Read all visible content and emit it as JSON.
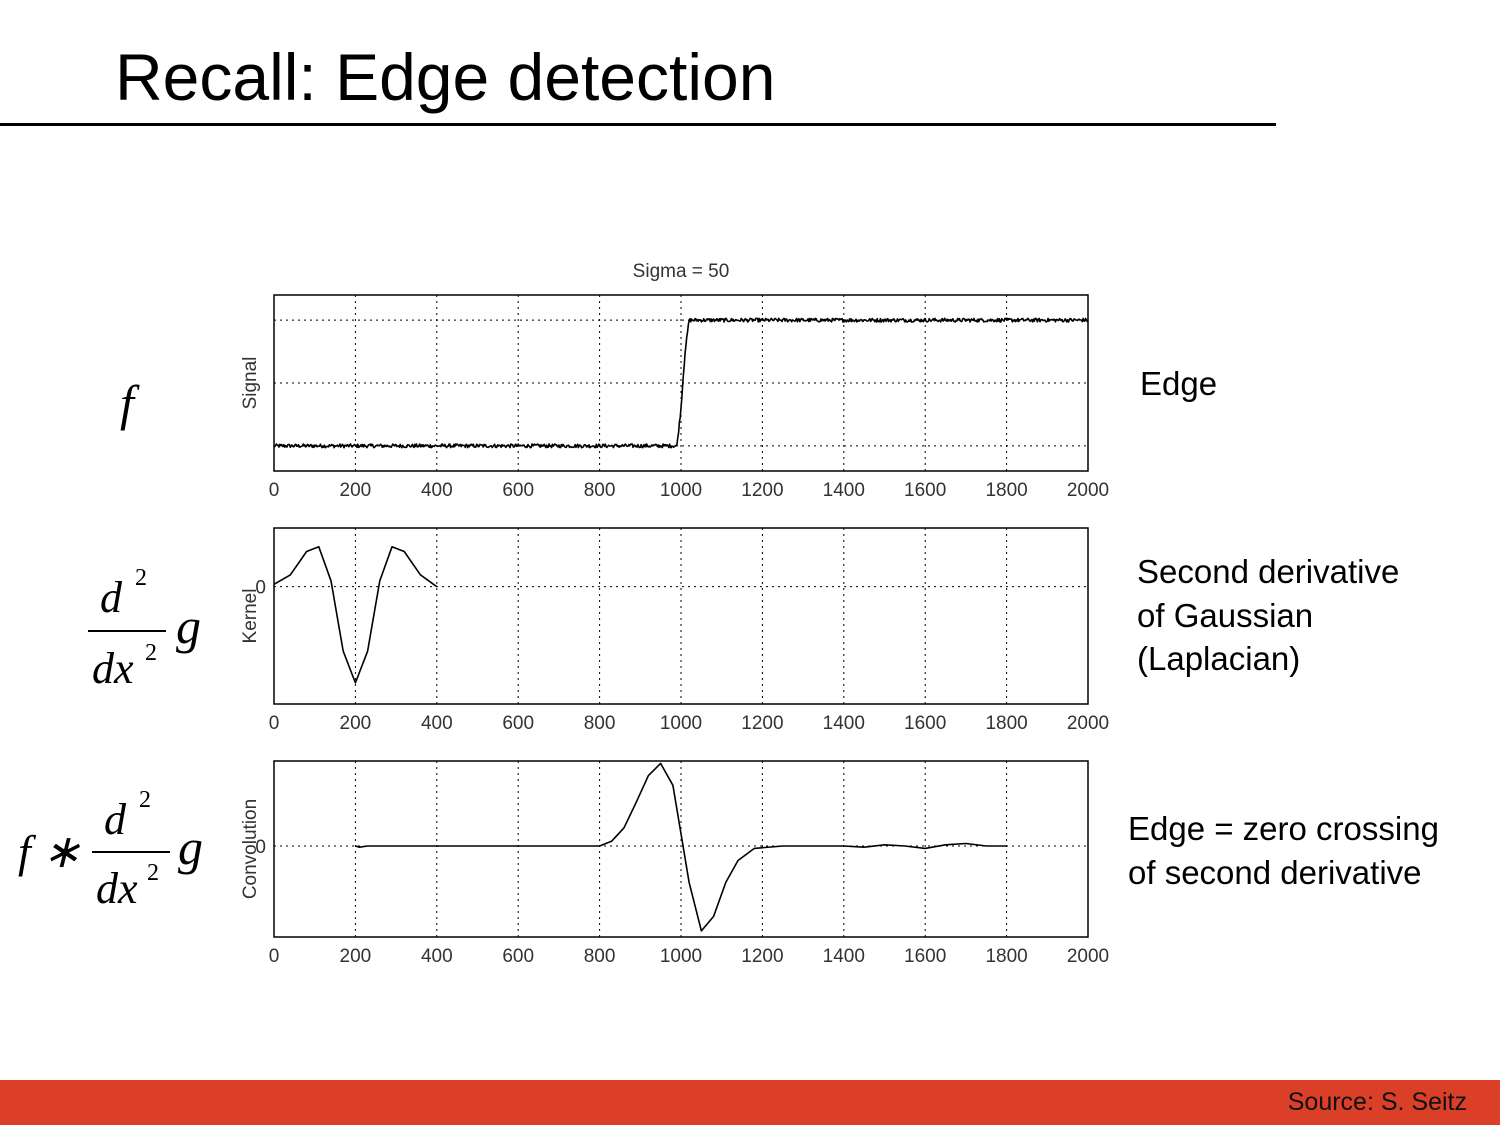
{
  "slide": {
    "title": "Recall: Edge detection",
    "source": "Source: S. Seitz"
  },
  "formulas": {
    "f": "f",
    "d2": "d",
    "dx2": "dx",
    "sq": "2",
    "g": "g",
    "conv": "f ∗"
  },
  "labels": {
    "edge": "Edge",
    "laplacian": [
      "Second derivative",
      "of Gaussian",
      "(Laplacian)"
    ],
    "zero_crossing": [
      "Edge = zero crossing",
      "of second derivative"
    ]
  },
  "colors": {
    "footer": "#db3f28",
    "line": "#000000"
  },
  "chart_data": [
    {
      "type": "line",
      "title": "Sigma = 50",
      "ylabel": "Signal",
      "xlim": [
        0,
        2000
      ],
      "ylim": [
        0,
        1.4
      ],
      "xticks": [
        0,
        200,
        400,
        600,
        800,
        1000,
        1200,
        1400,
        1600,
        1800,
        2000
      ],
      "yticks": [
        0.2,
        0.7,
        1.2
      ],
      "ytick_labels": [],
      "grid": true,
      "noise": 0.015,
      "series": [
        {
          "x": [
            0,
            990,
            1000,
            1010,
            1020,
            2000
          ],
          "y": [
            0.2,
            0.2,
            0.5,
            0.95,
            1.2,
            1.2
          ]
        }
      ]
    },
    {
      "type": "line",
      "ylabel": "Kernel",
      "xlim": [
        0,
        2000
      ],
      "ylim": [
        -1.0,
        0.5
      ],
      "xticks": [
        0,
        200,
        400,
        600,
        800,
        1000,
        1200,
        1400,
        1600,
        1800,
        2000
      ],
      "yticks": [
        0
      ],
      "ytick_labels": [
        "0"
      ],
      "grid": true,
      "series": [
        {
          "x": [
            0,
            40,
            80,
            110,
            140,
            170,
            200,
            230,
            260,
            290,
            320,
            360,
            400
          ],
          "y": [
            0.02,
            0.1,
            0.3,
            0.34,
            0.05,
            -0.55,
            -0.82,
            -0.55,
            0.05,
            0.34,
            0.3,
            0.1,
            0.0
          ]
        }
      ]
    },
    {
      "type": "line",
      "ylabel": "Convolution",
      "xlim": [
        0,
        2000
      ],
      "ylim": [
        -0.75,
        0.7
      ],
      "xticks": [
        0,
        200,
        400,
        600,
        800,
        1000,
        1200,
        1400,
        1600,
        1800,
        2000
      ],
      "yticks": [
        0
      ],
      "ytick_labels": [
        "0"
      ],
      "grid": true,
      "series": [
        {
          "x": [
            200,
            210,
            230,
            800,
            830,
            860,
            890,
            920,
            950,
            980,
            1000,
            1020,
            1050,
            1080,
            1110,
            1140,
            1180,
            1250,
            1400,
            1450,
            1500,
            1550,
            1600,
            1650,
            1700,
            1750,
            1800
          ],
          "y": [
            0,
            -0.01,
            0,
            0,
            0.04,
            0.15,
            0.36,
            0.58,
            0.68,
            0.5,
            0.1,
            -0.3,
            -0.7,
            -0.58,
            -0.3,
            -0.12,
            -0.02,
            0,
            0,
            -0.01,
            0.01,
            0,
            -0.02,
            0.01,
            0.02,
            0,
            0
          ]
        }
      ]
    }
  ]
}
